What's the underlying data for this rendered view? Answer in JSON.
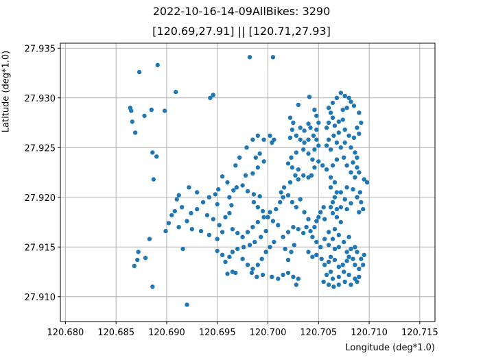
{
  "chart_data": {
    "type": "scatter",
    "title": "2022-10-16-14-09AllBikes: 3290",
    "subtitle": "[120.69,27.91] || [120.71,27.93]",
    "xlabel": "Longitude (deg*1.0)",
    "ylabel": "Latitude (deg*1.0)",
    "xlim": [
      120.6795,
      120.7165
    ],
    "ylim": [
      27.9075,
      27.9355
    ],
    "x_ticks": [
      "120.680",
      "120.685",
      "120.690",
      "120.695",
      "120.700",
      "120.705",
      "120.710",
      "120.715"
    ],
    "y_ticks": [
      "27.910",
      "27.915",
      "27.920",
      "27.925",
      "27.930",
      "27.935"
    ],
    "grid": true,
    "point_color": "#1f77b4",
    "points": [
      [
        120.6873,
        27.9326
      ],
      [
        120.6891,
        27.9333
      ],
      [
        120.6982,
        27.9341
      ],
      [
        120.7005,
        27.9341
      ],
      [
        120.6909,
        27.9306
      ],
      [
        120.6943,
        27.93
      ],
      [
        120.6946,
        27.9303
      ],
      [
        120.6864,
        27.929
      ],
      [
        120.6865,
        27.9287
      ],
      [
        120.6885,
        27.9288
      ],
      [
        120.6898,
        27.9287
      ],
      [
        120.6878,
        27.9282
      ],
      [
        120.6866,
        27.9276
      ],
      [
        120.6869,
        27.9265
      ],
      [
        120.6886,
        27.9245
      ],
      [
        120.689,
        27.9241
      ],
      [
        120.6887,
        27.9218
      ],
      [
        120.6899,
        27.9166
      ],
      [
        120.6883,
        27.9158
      ],
      [
        120.6872,
        27.9145
      ],
      [
        120.6871,
        27.9137
      ],
      [
        120.6879,
        27.9139
      ],
      [
        120.6868,
        27.9131
      ],
      [
        120.6886,
        27.911
      ],
      [
        120.692,
        27.9092
      ],
      [
        120.6916,
        27.9148
      ],
      [
        120.6912,
        27.9202
      ],
      [
        120.691,
        27.9198
      ],
      [
        120.6915,
        27.919
      ],
      [
        120.6908,
        27.9186
      ],
      [
        120.6905,
        27.9182
      ],
      [
        120.6902,
        27.9174
      ],
      [
        120.6912,
        27.917
      ],
      [
        120.692,
        27.9176
      ],
      [
        120.6924,
        27.9184
      ],
      [
        120.693,
        27.9188
      ],
      [
        120.6936,
        27.9195
      ],
      [
        120.6942,
        27.92
      ],
      [
        120.6948,
        27.9203
      ],
      [
        120.6951,
        27.9208
      ],
      [
        120.6922,
        27.921
      ],
      [
        120.693,
        27.9205
      ],
      [
        120.694,
        27.9182
      ],
      [
        120.6946,
        27.9178
      ],
      [
        120.6925,
        27.9168
      ],
      [
        120.6934,
        27.9166
      ],
      [
        120.6942,
        27.9162
      ],
      [
        120.695,
        27.9158
      ],
      [
        120.6955,
        27.9165
      ],
      [
        120.6952,
        27.9172
      ],
      [
        120.6958,
        27.918
      ],
      [
        120.6962,
        27.9184
      ],
      [
        120.6964,
        27.9192
      ],
      [
        120.695,
        27.9193
      ],
      [
        120.6962,
        27.92
      ],
      [
        120.6966,
        27.9207
      ],
      [
        120.6969,
        27.921
      ],
      [
        120.696,
        27.9215
      ],
      [
        120.6955,
        27.9221
      ],
      [
        120.6975,
        27.9212
      ],
      [
        120.698,
        27.9206
      ],
      [
        120.6986,
        27.9203
      ],
      [
        120.6992,
        27.9201
      ],
      [
        120.6968,
        27.9232
      ],
      [
        120.6972,
        27.924
      ],
      [
        120.6979,
        27.925
      ],
      [
        120.6985,
        27.9258
      ],
      [
        120.699,
        27.9262
      ],
      [
        120.6996,
        27.9258
      ],
      [
        120.7002,
        27.9262
      ],
      [
        120.7006,
        27.9258
      ],
      [
        120.7004,
        27.9255
      ],
      [
        120.6992,
        27.9244
      ],
      [
        120.6988,
        27.924
      ],
      [
        120.6996,
        27.9236
      ],
      [
        120.699,
        27.923
      ],
      [
        120.6985,
        27.9224
      ],
      [
        120.6978,
        27.9222
      ],
      [
        120.6965,
        27.9168
      ],
      [
        120.697,
        27.9164
      ],
      [
        120.6975,
        27.916
      ],
      [
        120.698,
        27.9165
      ],
      [
        120.6985,
        27.917
      ],
      [
        120.699,
        27.9175
      ],
      [
        120.6996,
        27.918
      ],
      [
        120.7002,
        27.9185
      ],
      [
        120.7008,
        27.9188
      ],
      [
        120.7012,
        27.9195
      ],
      [
        120.7015,
        27.92
      ],
      [
        120.7013,
        27.9205
      ],
      [
        120.6986,
        27.9195
      ],
      [
        120.699,
        27.919
      ],
      [
        120.6995,
        27.9186
      ],
      [
        120.7,
        27.918
      ],
      [
        120.7005,
        27.9176
      ],
      [
        120.701,
        27.9172
      ],
      [
        120.6998,
        27.9166
      ],
      [
        120.6993,
        27.916
      ],
      [
        120.6987,
        27.9155
      ],
      [
        120.6982,
        27.9152
      ],
      [
        120.6976,
        27.915
      ],
      [
        120.697,
        27.9148
      ],
      [
        120.6965,
        27.9145
      ],
      [
        120.6962,
        27.914
      ],
      [
        120.6958,
        27.9135
      ],
      [
        120.6955,
        27.9142
      ],
      [
        120.695,
        27.9146
      ],
      [
        120.6975,
        27.9138
      ],
      [
        120.698,
        27.9132
      ],
      [
        120.6985,
        27.9128
      ],
      [
        120.699,
        27.9132
      ],
      [
        120.6994,
        27.9138
      ],
      [
        120.6998,
        27.9145
      ],
      [
        120.7002,
        27.915
      ],
      [
        120.7006,
        27.9155
      ],
      [
        120.6995,
        27.9122
      ],
      [
        120.6989,
        27.912
      ],
      [
        120.6984,
        27.9124
      ],
      [
        120.7004,
        27.912
      ],
      [
        120.701,
        27.9118
      ],
      [
        120.7015,
        27.9122
      ],
      [
        120.702,
        27.9124
      ],
      [
        120.7025,
        27.912
      ],
      [
        120.703,
        27.9118
      ],
      [
        120.7028,
        27.9112
      ],
      [
        120.6965,
        27.9125
      ],
      [
        120.696,
        27.9123
      ],
      [
        120.6968,
        27.9124
      ],
      [
        120.7015,
        27.916
      ],
      [
        120.702,
        27.9165
      ],
      [
        120.7025,
        27.917
      ],
      [
        120.703,
        27.9168
      ],
      [
        120.7035,
        27.9164
      ],
      [
        120.7038,
        27.917
      ],
      [
        120.704,
        27.9178
      ],
      [
        120.7036,
        27.9185
      ],
      [
        120.7028,
        27.919
      ],
      [
        120.7024,
        27.9195
      ],
      [
        120.7032,
        27.9198
      ],
      [
        120.702,
        27.9202
      ],
      [
        120.702,
        27.9137
      ],
      [
        120.7023,
        27.9145
      ],
      [
        120.7026,
        27.9152
      ],
      [
        120.7017,
        27.9148
      ],
      [
        120.7016,
        27.921
      ],
      [
        120.7022,
        27.9215
      ],
      [
        120.7027,
        27.9222
      ],
      [
        120.703,
        27.9218
      ],
      [
        120.7035,
        27.9222
      ],
      [
        120.704,
        27.922
      ],
      [
        120.7043,
        27.9222
      ],
      [
        120.7046,
        27.923
      ],
      [
        120.7044,
        27.9238
      ],
      [
        120.704,
        27.9244
      ],
      [
        120.7035,
        27.9248
      ],
      [
        120.7028,
        27.9245
      ],
      [
        120.7023,
        27.924
      ],
      [
        120.702,
        27.9234
      ],
      [
        120.7024,
        27.923
      ],
      [
        120.703,
        27.9228
      ],
      [
        120.7022,
        27.926
      ],
      [
        120.7024,
        27.9268
      ],
      [
        120.7025,
        27.9275
      ],
      [
        120.7022,
        27.928
      ],
      [
        120.7028,
        27.9262
      ],
      [
        120.7032,
        27.9258
      ],
      [
        120.7036,
        27.9255
      ],
      [
        120.704,
        27.9258
      ],
      [
        120.7045,
        27.9262
      ],
      [
        120.7048,
        27.9258
      ],
      [
        120.705,
        27.9252
      ],
      [
        120.7046,
        27.9248
      ],
      [
        120.7042,
        27.927
      ],
      [
        120.704,
        27.9274
      ],
      [
        120.7036,
        27.9267
      ],
      [
        120.7032,
        27.927
      ],
      [
        120.7048,
        27.9268
      ],
      [
        120.705,
        27.9275
      ],
      [
        120.7048,
        27.9282
      ],
      [
        120.7046,
        27.9288
      ],
      [
        120.7041,
        27.9301
      ],
      [
        120.703,
        27.9293
      ],
      [
        120.706,
        27.929
      ],
      [
        120.7062,
        27.9285
      ],
      [
        120.7064,
        27.928
      ],
      [
        120.706,
        27.9275
      ],
      [
        120.7058,
        27.927
      ],
      [
        120.7066,
        27.9272
      ],
      [
        120.707,
        27.9276
      ],
      [
        120.7064,
        27.9295
      ],
      [
        120.7068,
        27.93
      ],
      [
        120.7072,
        27.9305
      ],
      [
        120.7076,
        27.9302
      ],
      [
        120.708,
        27.93
      ],
      [
        120.7082,
        27.9296
      ],
      [
        120.7085,
        27.9292
      ],
      [
        120.7078,
        27.929
      ],
      [
        120.7074,
        27.9288
      ],
      [
        120.709,
        27.9285
      ],
      [
        120.7092,
        27.9275
      ],
      [
        120.7088,
        27.927
      ],
      [
        120.709,
        27.9264
      ],
      [
        120.7085,
        27.926
      ],
      [
        120.708,
        27.9262
      ],
      [
        120.7076,
        27.9268
      ],
      [
        120.707,
        27.9265
      ],
      [
        120.7065,
        27.9262
      ],
      [
        120.706,
        27.9258
      ],
      [
        120.7058,
        27.9252
      ],
      [
        120.7062,
        27.9248
      ],
      [
        120.7072,
        27.925
      ],
      [
        120.7076,
        27.9255
      ],
      [
        120.7082,
        27.925
      ],
      [
        120.7086,
        27.9245
      ],
      [
        120.7088,
        27.924
      ],
      [
        120.7084,
        27.9235
      ],
      [
        120.7088,
        27.923
      ],
      [
        120.709,
        27.9225
      ],
      [
        120.7086,
        27.922
      ],
      [
        120.7082,
        27.9225
      ],
      [
        120.7078,
        27.9232
      ],
      [
        120.7075,
        27.924
      ],
      [
        120.7068,
        27.9238
      ],
      [
        120.7064,
        27.9232
      ],
      [
        120.7058,
        27.9228
      ],
      [
        120.7054,
        27.9232
      ],
      [
        120.705,
        27.9236
      ],
      [
        120.7068,
        27.9255
      ],
      [
        120.7074,
        27.9278
      ],
      [
        120.7062,
        27.922
      ],
      [
        120.7066,
        27.9215
      ],
      [
        120.7062,
        27.921
      ],
      [
        120.7068,
        27.9205
      ],
      [
        120.7066,
        27.92
      ],
      [
        120.7064,
        27.9195
      ],
      [
        120.7062,
        27.919
      ],
      [
        120.7068,
        27.9188
      ],
      [
        120.7072,
        27.919
      ],
      [
        120.7078,
        27.9188
      ],
      [
        120.7082,
        27.9194
      ],
      [
        120.7076,
        27.9198
      ],
      [
        120.7072,
        27.9205
      ],
      [
        120.7078,
        27.921
      ],
      [
        120.7084,
        27.9208
      ],
      [
        120.7088,
        27.92
      ],
      [
        120.7092,
        27.9195
      ],
      [
        120.7094,
        27.9188
      ],
      [
        120.709,
        27.9185
      ],
      [
        120.7095,
        27.9218
      ],
      [
        120.7098,
        27.9215
      ],
      [
        120.7091,
        27.9205
      ],
      [
        120.7055,
        27.919
      ],
      [
        120.7052,
        27.9185
      ],
      [
        120.705,
        27.918
      ],
      [
        120.7048,
        27.9176
      ],
      [
        120.7046,
        27.917
      ],
      [
        120.7042,
        27.9166
      ],
      [
        120.7044,
        27.916
      ],
      [
        120.7048,
        27.9155
      ],
      [
        120.7052,
        27.915
      ],
      [
        120.7056,
        27.9158
      ],
      [
        120.706,
        27.9165
      ],
      [
        120.7066,
        27.9168
      ],
      [
        120.707,
        27.9162
      ],
      [
        120.7064,
        27.9158
      ],
      [
        120.706,
        27.9152
      ],
      [
        120.7066,
        27.9148
      ],
      [
        120.707,
        27.915
      ],
      [
        120.7075,
        27.9155
      ],
      [
        120.708,
        27.916
      ],
      [
        120.7072,
        27.9175
      ],
      [
        120.7068,
        27.918
      ],
      [
        120.7064,
        27.9184
      ],
      [
        120.7056,
        27.9178
      ],
      [
        120.704,
        27.9145
      ],
      [
        120.7044,
        27.914
      ],
      [
        120.7048,
        27.9142
      ],
      [
        120.7053,
        27.9138
      ],
      [
        120.7056,
        27.9132
      ],
      [
        120.706,
        27.9135
      ],
      [
        120.7062,
        27.914
      ],
      [
        120.7066,
        27.9137
      ],
      [
        120.707,
        27.913
      ],
      [
        120.7074,
        27.9132
      ],
      [
        120.7078,
        27.9136
      ],
      [
        120.708,
        27.914
      ],
      [
        120.7078,
        27.9145
      ],
      [
        120.7082,
        27.9148
      ],
      [
        120.7086,
        27.915
      ],
      [
        120.7088,
        27.9145
      ],
      [
        120.7084,
        27.9138
      ],
      [
        120.7086,
        27.9132
      ],
      [
        120.709,
        27.9128
      ],
      [
        120.7094,
        27.9132
      ],
      [
        120.7092,
        27.9138
      ],
      [
        120.7095,
        27.9142
      ],
      [
        120.709,
        27.912
      ],
      [
        120.7086,
        27.9118
      ],
      [
        120.708,
        27.9122
      ],
      [
        120.7075,
        27.9125
      ],
      [
        120.707,
        27.912
      ],
      [
        120.7064,
        27.9118
      ],
      [
        120.7062,
        27.9125
      ],
      [
        120.7058,
        27.9122
      ],
      [
        120.7055,
        27.9115
      ],
      [
        120.706,
        27.9112
      ],
      [
        120.7065,
        27.911
      ],
      [
        120.707,
        27.9112
      ],
      [
        120.7076,
        27.9115
      ],
      [
        120.7082,
        27.9112
      ],
      [
        120.7088,
        27.9115
      ]
    ]
  }
}
